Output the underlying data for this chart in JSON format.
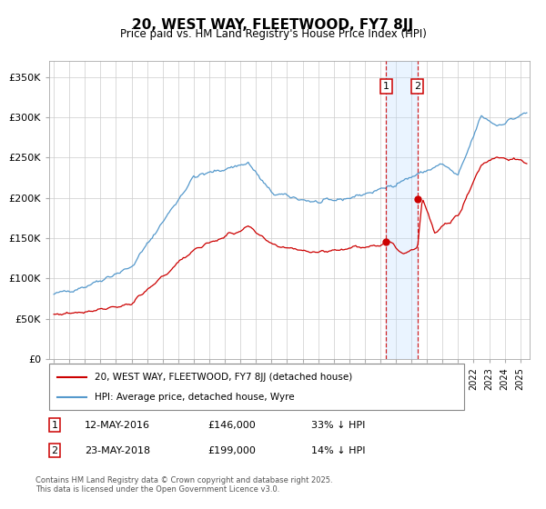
{
  "title": "20, WEST WAY, FLEETWOOD, FY7 8JJ",
  "subtitle": "Price paid vs. HM Land Registry's House Price Index (HPI)",
  "ylim": [
    0,
    370000
  ],
  "yticks": [
    0,
    50000,
    100000,
    150000,
    200000,
    250000,
    300000,
    350000
  ],
  "ytick_labels": [
    "£0",
    "£50K",
    "£100K",
    "£150K",
    "£200K",
    "£250K",
    "£300K",
    "£350K"
  ],
  "transaction1_date": 2016.37,
  "transaction1_price": 146000,
  "transaction2_date": 2018.39,
  "transaction2_price": 199000,
  "legend_line1": "20, WEST WAY, FLEETWOOD, FY7 8JJ (detached house)",
  "legend_line2": "HPI: Average price, detached house, Wyre",
  "annotation1_date": "12-MAY-2016",
  "annotation1_price": "£146,000",
  "annotation1_note": "33% ↓ HPI",
  "annotation2_date": "23-MAY-2018",
  "annotation2_price": "£199,000",
  "annotation2_note": "14% ↓ HPI",
  "footer": "Contains HM Land Registry data © Crown copyright and database right 2025.\nThis data is licensed under the Open Government Licence v3.0.",
  "line_red_color": "#cc0000",
  "line_blue_color": "#5599cc",
  "grid_color": "#cccccc",
  "shade_color": "#ddeeff",
  "vline_color": "#cc0000"
}
